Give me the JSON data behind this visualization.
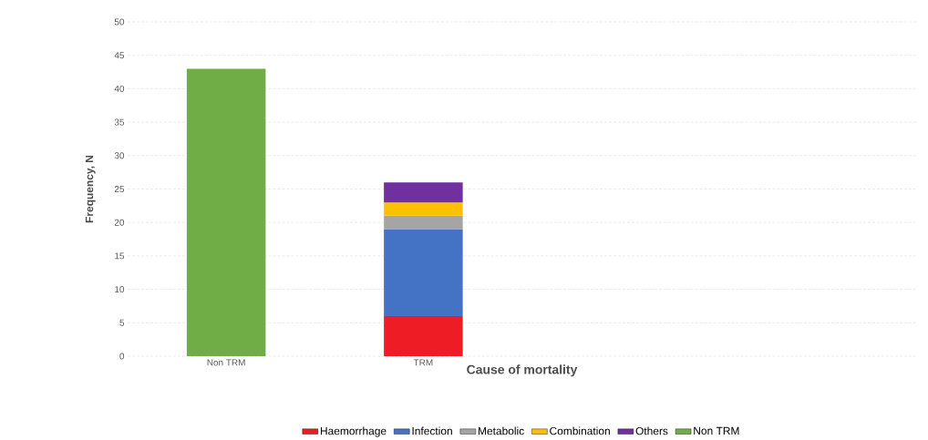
{
  "chart_data": {
    "type": "bar",
    "stacked": true,
    "xlabel": "Cause of mortality",
    "ylabel": "Frequency, N",
    "categories": [
      "Non TRM",
      "TRM",
      null,
      null
    ],
    "series": [
      {
        "name": "Haemorrhage",
        "color": "#ee1c24",
        "values": [
          null,
          6,
          null,
          null
        ]
      },
      {
        "name": "Infection",
        "color": "#4472c4",
        "values": [
          null,
          13,
          null,
          null
        ]
      },
      {
        "name": "Metabolic",
        "color": "#a5a5a5",
        "values": [
          null,
          2,
          null,
          null
        ]
      },
      {
        "name": "Combination",
        "color": "#ffc000",
        "values": [
          null,
          2,
          null,
          null
        ]
      },
      {
        "name": "Others",
        "color": "#7030a0",
        "values": [
          null,
          3,
          null,
          null
        ]
      },
      {
        "name": "Non TRM",
        "color": "#70ad47",
        "values": [
          43,
          null,
          null,
          null
        ]
      }
    ],
    "ylim": [
      0,
      50
    ],
    "yticks": [
      0,
      5,
      10,
      15,
      20,
      25,
      30,
      35,
      40,
      45,
      50
    ],
    "grid": "y",
    "legend": "bottom"
  }
}
